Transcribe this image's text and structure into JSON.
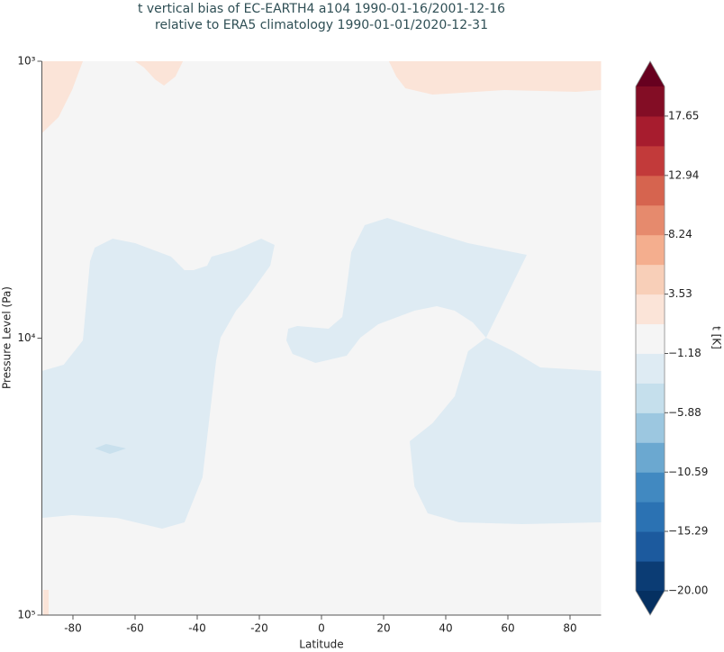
{
  "chart_data": {
    "type": "contour",
    "title": [
      "t vertical bias of EC-EARTH4 a104 1990-01-16/2001-12-16",
      "relative to ERA5 climatology 1990-01-01/2020-12-31"
    ],
    "xlabel": "Latitude",
    "ylabel": "Pressure Level (Pa)",
    "xlim": [
      -90,
      90
    ],
    "xticks": [
      -80,
      -60,
      -40,
      -20,
      0,
      20,
      40,
      60,
      80
    ],
    "ylim": [
      1000,
      100000
    ],
    "yscale": "log",
    "yinverted": true,
    "yticks": [
      {
        "value": 1000,
        "label": "10³"
      },
      {
        "value": 10000,
        "label": "10⁴"
      },
      {
        "value": 100000,
        "label": "10⁵"
      }
    ],
    "background": "#f5f5f5",
    "regions": [
      {
        "color": "#fbe4d8",
        "x": [
          -90,
          -76.8,
          -80.3,
          -84.6,
          -90
        ],
        "y": [
          1000,
          1000,
          1271,
          1591,
          1820
        ]
      },
      {
        "color": "#fbe4d8",
        "x": [
          -60.0,
          -44.6,
          -47.0,
          -50.7,
          -53.6,
          -57.1
        ],
        "y": [
          1000,
          1000,
          1136,
          1224,
          1162,
          1054
        ]
      },
      {
        "color": "#fbe4d8",
        "x": [
          21.7,
          90,
          90,
          82.0,
          58.8,
          35.7,
          27.0,
          24.1
        ],
        "y": [
          1000,
          1000,
          1271,
          1290,
          1271,
          1319,
          1252,
          1136
        ]
      },
      {
        "color": "#fbe4d8",
        "x": [
          -89.6,
          -87.8,
          -87.8,
          -89.6
        ],
        "y": [
          81100,
          81100,
          100000,
          100000
        ]
      },
      {
        "color": "#deebf3",
        "x": [
          -90,
          -83.0,
          -76.8,
          -74.5,
          -73.0,
          -67.2,
          -60.0,
          -48.4,
          -44.1,
          -41.2,
          -36.8,
          -35.4,
          -28.1,
          -19.4,
          -15.1,
          -16.5,
          -23.8,
          -27.5,
          -32.5,
          -33.9,
          -38.3,
          -44.1,
          -51.3,
          -65.8,
          -80.3,
          -90
        ],
        "y": [
          13140,
          12470,
          10190,
          5272,
          4712,
          4372,
          4538,
          5078,
          5682,
          5682,
          5474,
          5078,
          4819,
          4372,
          4607,
          5474,
          7112,
          7958,
          9963,
          12020,
          31810,
          46240,
          48730,
          44560,
          43560,
          44560
        ]
      },
      {
        "color": "#c9e0ed",
        "x": [
          -73.0,
          -69.3,
          -62.9,
          -68.1
        ],
        "y": [
          25020,
          24110,
          25020,
          26180
        ]
      },
      {
        "color": "#deebf3",
        "x": [
          -10.7,
          -7.8,
          2.3,
          6.7,
          8.1,
          9.6,
          13.9,
          21.2,
          32.8,
          47.2,
          66.1,
          53.0,
          48.7,
          42.9,
          37.1,
          29.9,
          18.3,
          12.5,
          8.1,
          -1.9,
          -9.3,
          -11.3
        ],
        "y": [
          9245,
          9040,
          9245,
          8386,
          6599,
          4891,
          3907,
          3681,
          4056,
          4538,
          5003,
          9963,
          8774,
          7958,
          7666,
          7958,
          8905,
          9963,
          11570,
          12290,
          11400,
          10190
        ]
      },
      {
        "color": "#deebf3",
        "x": [
          90,
          70.4,
          61.7,
          53.0,
          47.2,
          42.9,
          35.7,
          28.4,
          29.9,
          34.2,
          44.3,
          64.6,
          90
        ],
        "y": [
          13140,
          12760,
          11150,
          9963,
          11150,
          16210,
          20290,
          23570,
          34280,
          42910,
          46240,
          46950,
          46240
        ]
      }
    ],
    "colorbar": {
      "label": "t [K]",
      "clim": [
        -20,
        20
      ],
      "colors": [
        "#0b3c74",
        "#1c5a9e",
        "#2b72b3",
        "#4189c1",
        "#6ba8d0",
        "#9cc7e0",
        "#c5dfec",
        "#deebf3",
        "#f5f5f5",
        "#fbe4d8",
        "#f8cfb8",
        "#f4ae8e",
        "#e68a6d",
        "#d6644f",
        "#c23a3a",
        "#a71c2e",
        "#830d25"
      ],
      "under": "#053061",
      "over": "#67001f",
      "ticks": [
        {
          "value": -20,
          "label": "−20.00"
        },
        {
          "value": -15.29,
          "label": "−15.29"
        },
        {
          "value": -10.59,
          "label": "−10.59"
        },
        {
          "value": -5.88,
          "label": "−5.88"
        },
        {
          "value": -1.18,
          "label": "−1.18"
        },
        3.53,
        8.24,
        12.94,
        17.65
      ]
    }
  }
}
